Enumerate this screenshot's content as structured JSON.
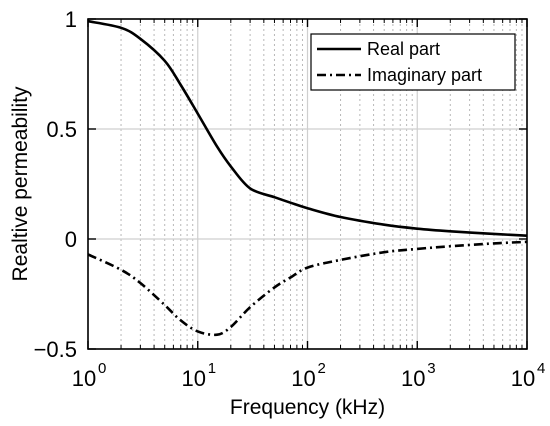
{
  "chart_data": {
    "type": "line",
    "xlabel": "Frequency (kHz)",
    "ylabel": "Realtive permeability",
    "xscale": "log",
    "xlim": [
      1,
      10000
    ],
    "ylim": [
      -0.5,
      1
    ],
    "grid": true,
    "legend_position": "top-right",
    "x_ticks": [
      {
        "base": "10",
        "exp": "0"
      },
      {
        "base": "10",
        "exp": "1"
      },
      {
        "base": "10",
        "exp": "2"
      },
      {
        "base": "10",
        "exp": "3"
      },
      {
        "base": "10",
        "exp": "4"
      }
    ],
    "y_ticks": [
      "1",
      "0.5",
      "0",
      "−0.5"
    ],
    "y_tick_values": [
      1,
      0.5,
      0,
      -0.5
    ],
    "x": [
      1,
      2,
      3,
      5,
      7,
      10,
      15,
      20,
      30,
      50,
      70,
      100,
      200,
      500,
      1000,
      2000,
      5000,
      10000
    ],
    "series": [
      {
        "name": "Real part",
        "style": "solid",
        "values": [
          0.99,
          0.96,
          0.91,
          0.81,
          0.7,
          0.57,
          0.42,
          0.33,
          0.23,
          0.19,
          0.165,
          0.14,
          0.1,
          0.065,
          0.047,
          0.035,
          0.023,
          0.015
        ]
      },
      {
        "name": "Imaginary part",
        "style": "dashdot",
        "values": [
          -0.07,
          -0.14,
          -0.2,
          -0.3,
          -0.37,
          -0.42,
          -0.435,
          -0.4,
          -0.31,
          -0.22,
          -0.175,
          -0.13,
          -0.095,
          -0.06,
          -0.045,
          -0.033,
          -0.02,
          -0.013
        ]
      }
    ]
  }
}
